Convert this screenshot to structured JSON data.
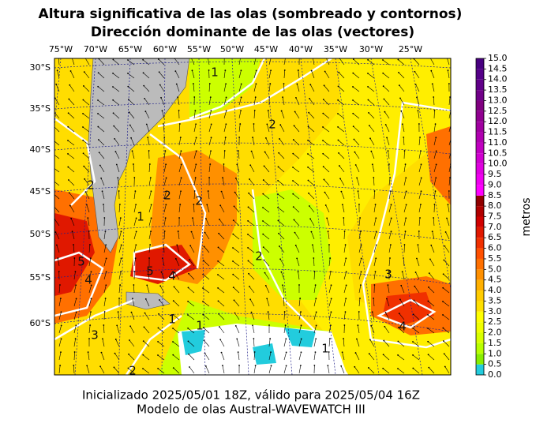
{
  "header": {
    "title": [
      "Altura significativa de las olas (sombreado y contornos)",
      "Dirección dominante de las olas (vectores)"
    ]
  },
  "map": {
    "lon_labels": [
      "75°W",
      "70°W",
      "65°W",
      "60°W",
      "55°W",
      "50°W",
      "45°W",
      "40°W",
      "35°W",
      "30°W",
      "25°W"
    ],
    "lat_labels": [
      "30°S",
      "35°S",
      "40°S",
      "45°S",
      "50°S",
      "55°S",
      "60°S"
    ],
    "contour_labels": [
      "1",
      "2",
      "2",
      "2",
      "2",
      "2",
      "5",
      "4",
      "5",
      "4",
      "3",
      "4",
      "3",
      "1",
      "1",
      "1",
      "2",
      "1"
    ]
  },
  "colorbar": {
    "label": "metros",
    "ticks": [
      {
        "value": 0,
        "label": "0.0"
      },
      {
        "value": 0.5,
        "label": "0.5"
      },
      {
        "value": 1,
        "label": "1.0"
      },
      {
        "value": 1.5,
        "label": "1.5"
      },
      {
        "value": 2,
        "label": "2.0"
      },
      {
        "value": 2.5,
        "label": "2.5"
      },
      {
        "value": 3,
        "label": "3.0"
      },
      {
        "value": 3.5,
        "label": "3.5"
      },
      {
        "value": 4,
        "label": "4.0"
      },
      {
        "value": 4.5,
        "label": "4.5"
      },
      {
        "value": 5,
        "label": "5.0"
      },
      {
        "value": 5.5,
        "label": "5.5"
      },
      {
        "value": 6,
        "label": "6.0"
      },
      {
        "value": 6.5,
        "label": "6.5"
      },
      {
        "value": 7,
        "label": "7.0"
      },
      {
        "value": 7.5,
        "label": "7.5"
      },
      {
        "value": 8,
        "label": "8.0"
      },
      {
        "value": 8.5,
        "label": "8.5"
      },
      {
        "value": 9,
        "label": "9.0"
      },
      {
        "value": 9.5,
        "label": "9.5"
      },
      {
        "value": 10,
        "label": "10.0"
      },
      {
        "value": 10.5,
        "label": "10.5"
      },
      {
        "value": 11,
        "label": "11.0"
      },
      {
        "value": 11.5,
        "label": "11.5"
      },
      {
        "value": 12,
        "label": "12.0"
      },
      {
        "value": 12.5,
        "label": "12.5"
      },
      {
        "value": 13,
        "label": "13.0"
      },
      {
        "value": 13.5,
        "label": "13.5"
      },
      {
        "value": 14,
        "label": "14.0"
      },
      {
        "value": 14.5,
        "label": "14.5"
      },
      {
        "value": 15,
        "label": "15.0"
      }
    ],
    "colors": [
      "#22ccdd",
      "#88ee00",
      "#b8ff00",
      "#d8ff00",
      "#f0ff00",
      "#ffff00",
      "#ffe000",
      "#ffcc00",
      "#ffb000",
      "#ff9000",
      "#ff7000",
      "#ff5000",
      "#f03000",
      "#e01800",
      "#d00000",
      "#b00000",
      "#900000",
      "#ff00ff",
      "#f000f0",
      "#e000e0",
      "#d000d0",
      "#c000c0",
      "#b000b0",
      "#a000a0",
      "#900090",
      "#800080",
      "#700088",
      "#600088",
      "#550088",
      "#480080"
    ]
  },
  "footer": [
    "Inicializado 2025/05/01 18Z, válido para 2025/05/04 16Z",
    "Modelo de olas Austral-WAVEWATCH III"
  ]
}
